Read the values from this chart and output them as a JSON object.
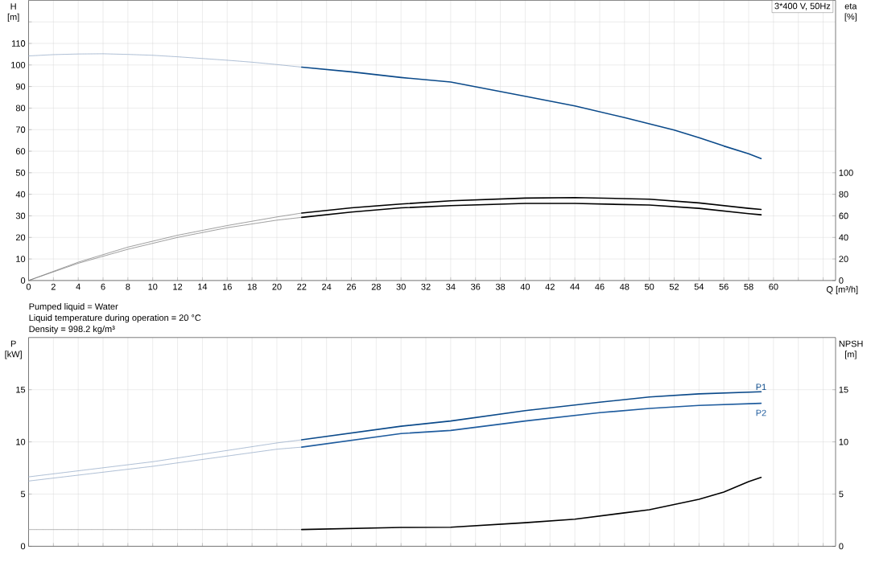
{
  "chart_data": [
    {
      "type": "line",
      "title": "3*400 V, 50Hz",
      "xlabel": "Q [m³/h]",
      "ylabel": "H [m]",
      "y2label": "eta [%]",
      "annotations": [
        "Pumped liquid = Water",
        "Liquid temperature during operation = 20 °C",
        "Density = 998.2 kg/m³"
      ],
      "xlim": [
        0,
        65
      ],
      "ylim": [
        0,
        130
      ],
      "y2lim": [
        0,
        260
      ],
      "xticks": [
        0,
        2,
        4,
        6,
        8,
        10,
        12,
        14,
        16,
        18,
        20,
        22,
        24,
        26,
        28,
        30,
        32,
        34,
        36,
        38,
        40,
        42,
        44,
        46,
        48,
        50,
        52,
        54,
        56,
        58,
        60,
        {
          "value": 62,
          "label": null
        },
        {
          "value": 64,
          "label": null
        }
      ],
      "yticks": [
        0,
        10,
        20,
        30,
        40,
        50,
        60,
        70,
        80,
        90,
        100,
        110,
        {
          "value": 120,
          "label": null
        }
      ],
      "y2ticks": [
        0,
        20,
        40,
        60,
        80,
        100
      ],
      "grid": true,
      "series": [
        {
          "color": "#8ea5c4",
          "line_style": "dashed",
          "x": [
            0,
            2,
            4,
            6,
            8,
            10,
            12,
            14,
            16,
            18,
            20,
            22
          ],
          "values": [
            104.2,
            104.8,
            105.1,
            105.2,
            104.9,
            104.5,
            103.8,
            103,
            102.2,
            101.3,
            100.2,
            99
          ]
        },
        {
          "color": "#0b4a8a",
          "line_style": "solid",
          "x": [
            22,
            26,
            30,
            34,
            40,
            44,
            48,
            50,
            52,
            54,
            56,
            58,
            59
          ],
          "values": [
            99,
            96.8,
            94.2,
            92.1,
            85.5,
            81,
            75.6,
            72.7,
            69.8,
            66.3,
            62.4,
            58.8,
            56.6
          ]
        },
        {
          "color": "#777777",
          "line_style": "dashed",
          "axis": "y2",
          "x": [
            0,
            4,
            8,
            12,
            16,
            20,
            22
          ],
          "values": [
            0,
            17,
            31,
            42,
            51,
            59,
            62.6
          ]
        },
        {
          "color": "#000000",
          "line_style": "solid",
          "axis": "y2",
          "x": [
            22,
            26,
            30,
            34,
            40,
            44,
            50,
            54,
            58,
            59
          ],
          "values": [
            62.6,
            67.5,
            71,
            74,
            76.5,
            77,
            75.5,
            72,
            67,
            66
          ]
        },
        {
          "color": "#777777",
          "line_style": "dashed",
          "axis": "y2",
          "x": [
            0,
            4,
            8,
            12,
            16,
            20,
            22
          ],
          "values": [
            0,
            16,
            29,
            40,
            49,
            56,
            58.6
          ]
        },
        {
          "color": "#000000",
          "line_style": "solid",
          "axis": "y2",
          "x": [
            22,
            26,
            30,
            34,
            40,
            44,
            50,
            54,
            58,
            59
          ],
          "values": [
            58.6,
            63.5,
            67.4,
            69.5,
            71.5,
            71.5,
            70,
            67,
            62,
            61
          ]
        }
      ]
    },
    {
      "type": "line",
      "ylabel": "P [kW]",
      "y2label": "NPSH [m]",
      "xlim": [
        0,
        65
      ],
      "ylim": [
        0,
        20
      ],
      "y2lim": [
        0,
        20
      ],
      "xticks": [
        0,
        2,
        4,
        6,
        8,
        10,
        12,
        14,
        16,
        18,
        20,
        22,
        24,
        26,
        28,
        30,
        32,
        34,
        36,
        38,
        40,
        42,
        44,
        46,
        48,
        50,
        52,
        54,
        56,
        58,
        60,
        62,
        64
      ],
      "yticks": [
        0,
        5,
        10,
        15
      ],
      "y2ticks": [
        0,
        5,
        10,
        15
      ],
      "tick_labels": "y",
      "grid": true,
      "series": [
        {
          "color": "#8ea5c4",
          "line_style": "dashed",
          "x": [
            0,
            10,
            20,
            22
          ],
          "values": [
            6.65,
            8.1,
            9.9,
            10.2
          ]
        },
        {
          "name": "P1",
          "color": "#0b4a8a",
          "line_style": "solid",
          "x": [
            22,
            30,
            34,
            40,
            46,
            50,
            54,
            59
          ],
          "values": [
            10.2,
            11.5,
            12,
            13,
            13.8,
            14.3,
            14.6,
            14.8
          ]
        },
        {
          "color": "#8ea5c4",
          "line_style": "dashed",
          "x": [
            0,
            10,
            20,
            22
          ],
          "values": [
            6.25,
            7.66,
            9.3,
            9.5
          ]
        },
        {
          "name": "P2",
          "color": "#1f5c9e",
          "line_style": "solid",
          "x": [
            22,
            30,
            34,
            40,
            46,
            50,
            54,
            59
          ],
          "values": [
            9.5,
            10.8,
            11.1,
            12,
            12.8,
            13.2,
            13.5,
            13.7
          ]
        },
        {
          "color": "#999999",
          "line_style": "dashed",
          "axis": "y2",
          "x": [
            0,
            22
          ],
          "values": [
            1.6,
            1.6
          ]
        },
        {
          "color": "#000000",
          "line_style": "solid",
          "axis": "y2",
          "x": [
            22,
            30,
            34,
            40,
            44,
            48,
            50,
            52,
            54,
            56,
            58,
            59
          ],
          "values": [
            1.6,
            1.8,
            1.83,
            2.26,
            2.6,
            3.2,
            3.5,
            4,
            4.5,
            5.2,
            6.2,
            6.6
          ]
        }
      ]
    }
  ]
}
